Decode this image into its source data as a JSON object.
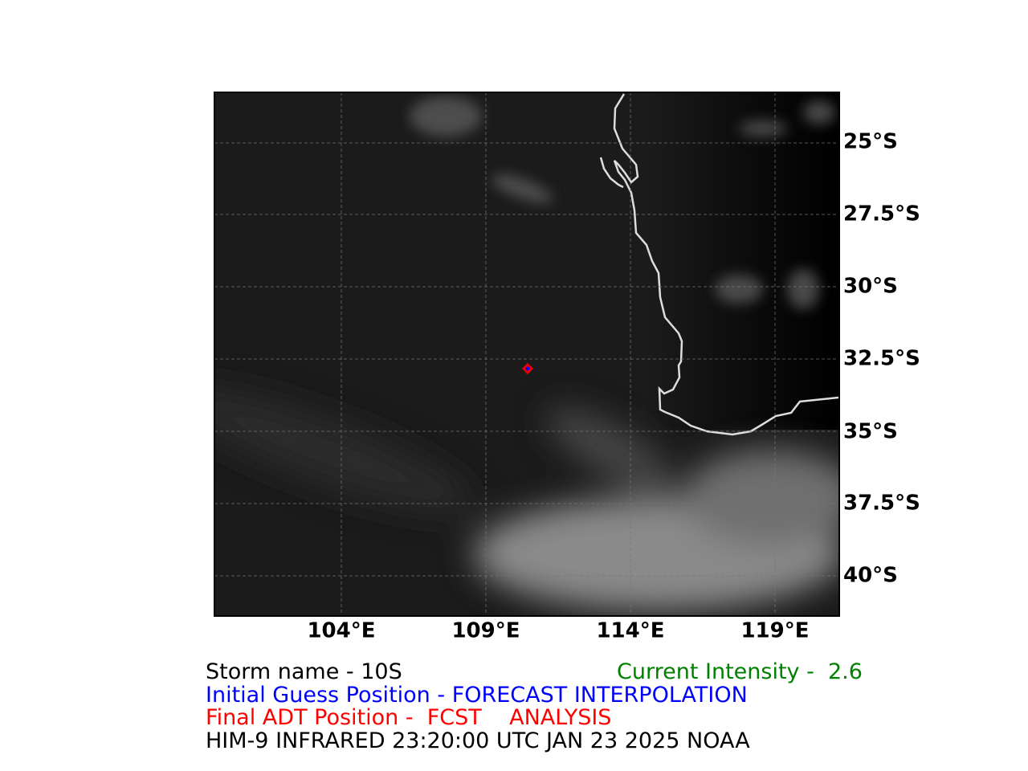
{
  "map": {
    "lat_labels": [
      "25°S",
      "27.5°S",
      "30°S",
      "32.5°S",
      "35°S",
      "37.5°S",
      "40°S"
    ],
    "lon_labels": [
      "104°E",
      "109°E",
      "114°E",
      "119°E"
    ]
  },
  "caption": {
    "storm_name": "Storm name - 10S",
    "current_intensity": "Current Intensity -  2.6",
    "initial_guess": "Initial Guess Position - FORECAST INTERPOLATION",
    "final_position": "Final ADT Position -  FCST    ANALYSIS",
    "source": "HIM-9 INFRARED 23:20:00 UTC JAN 23 2025 NOAA"
  }
}
